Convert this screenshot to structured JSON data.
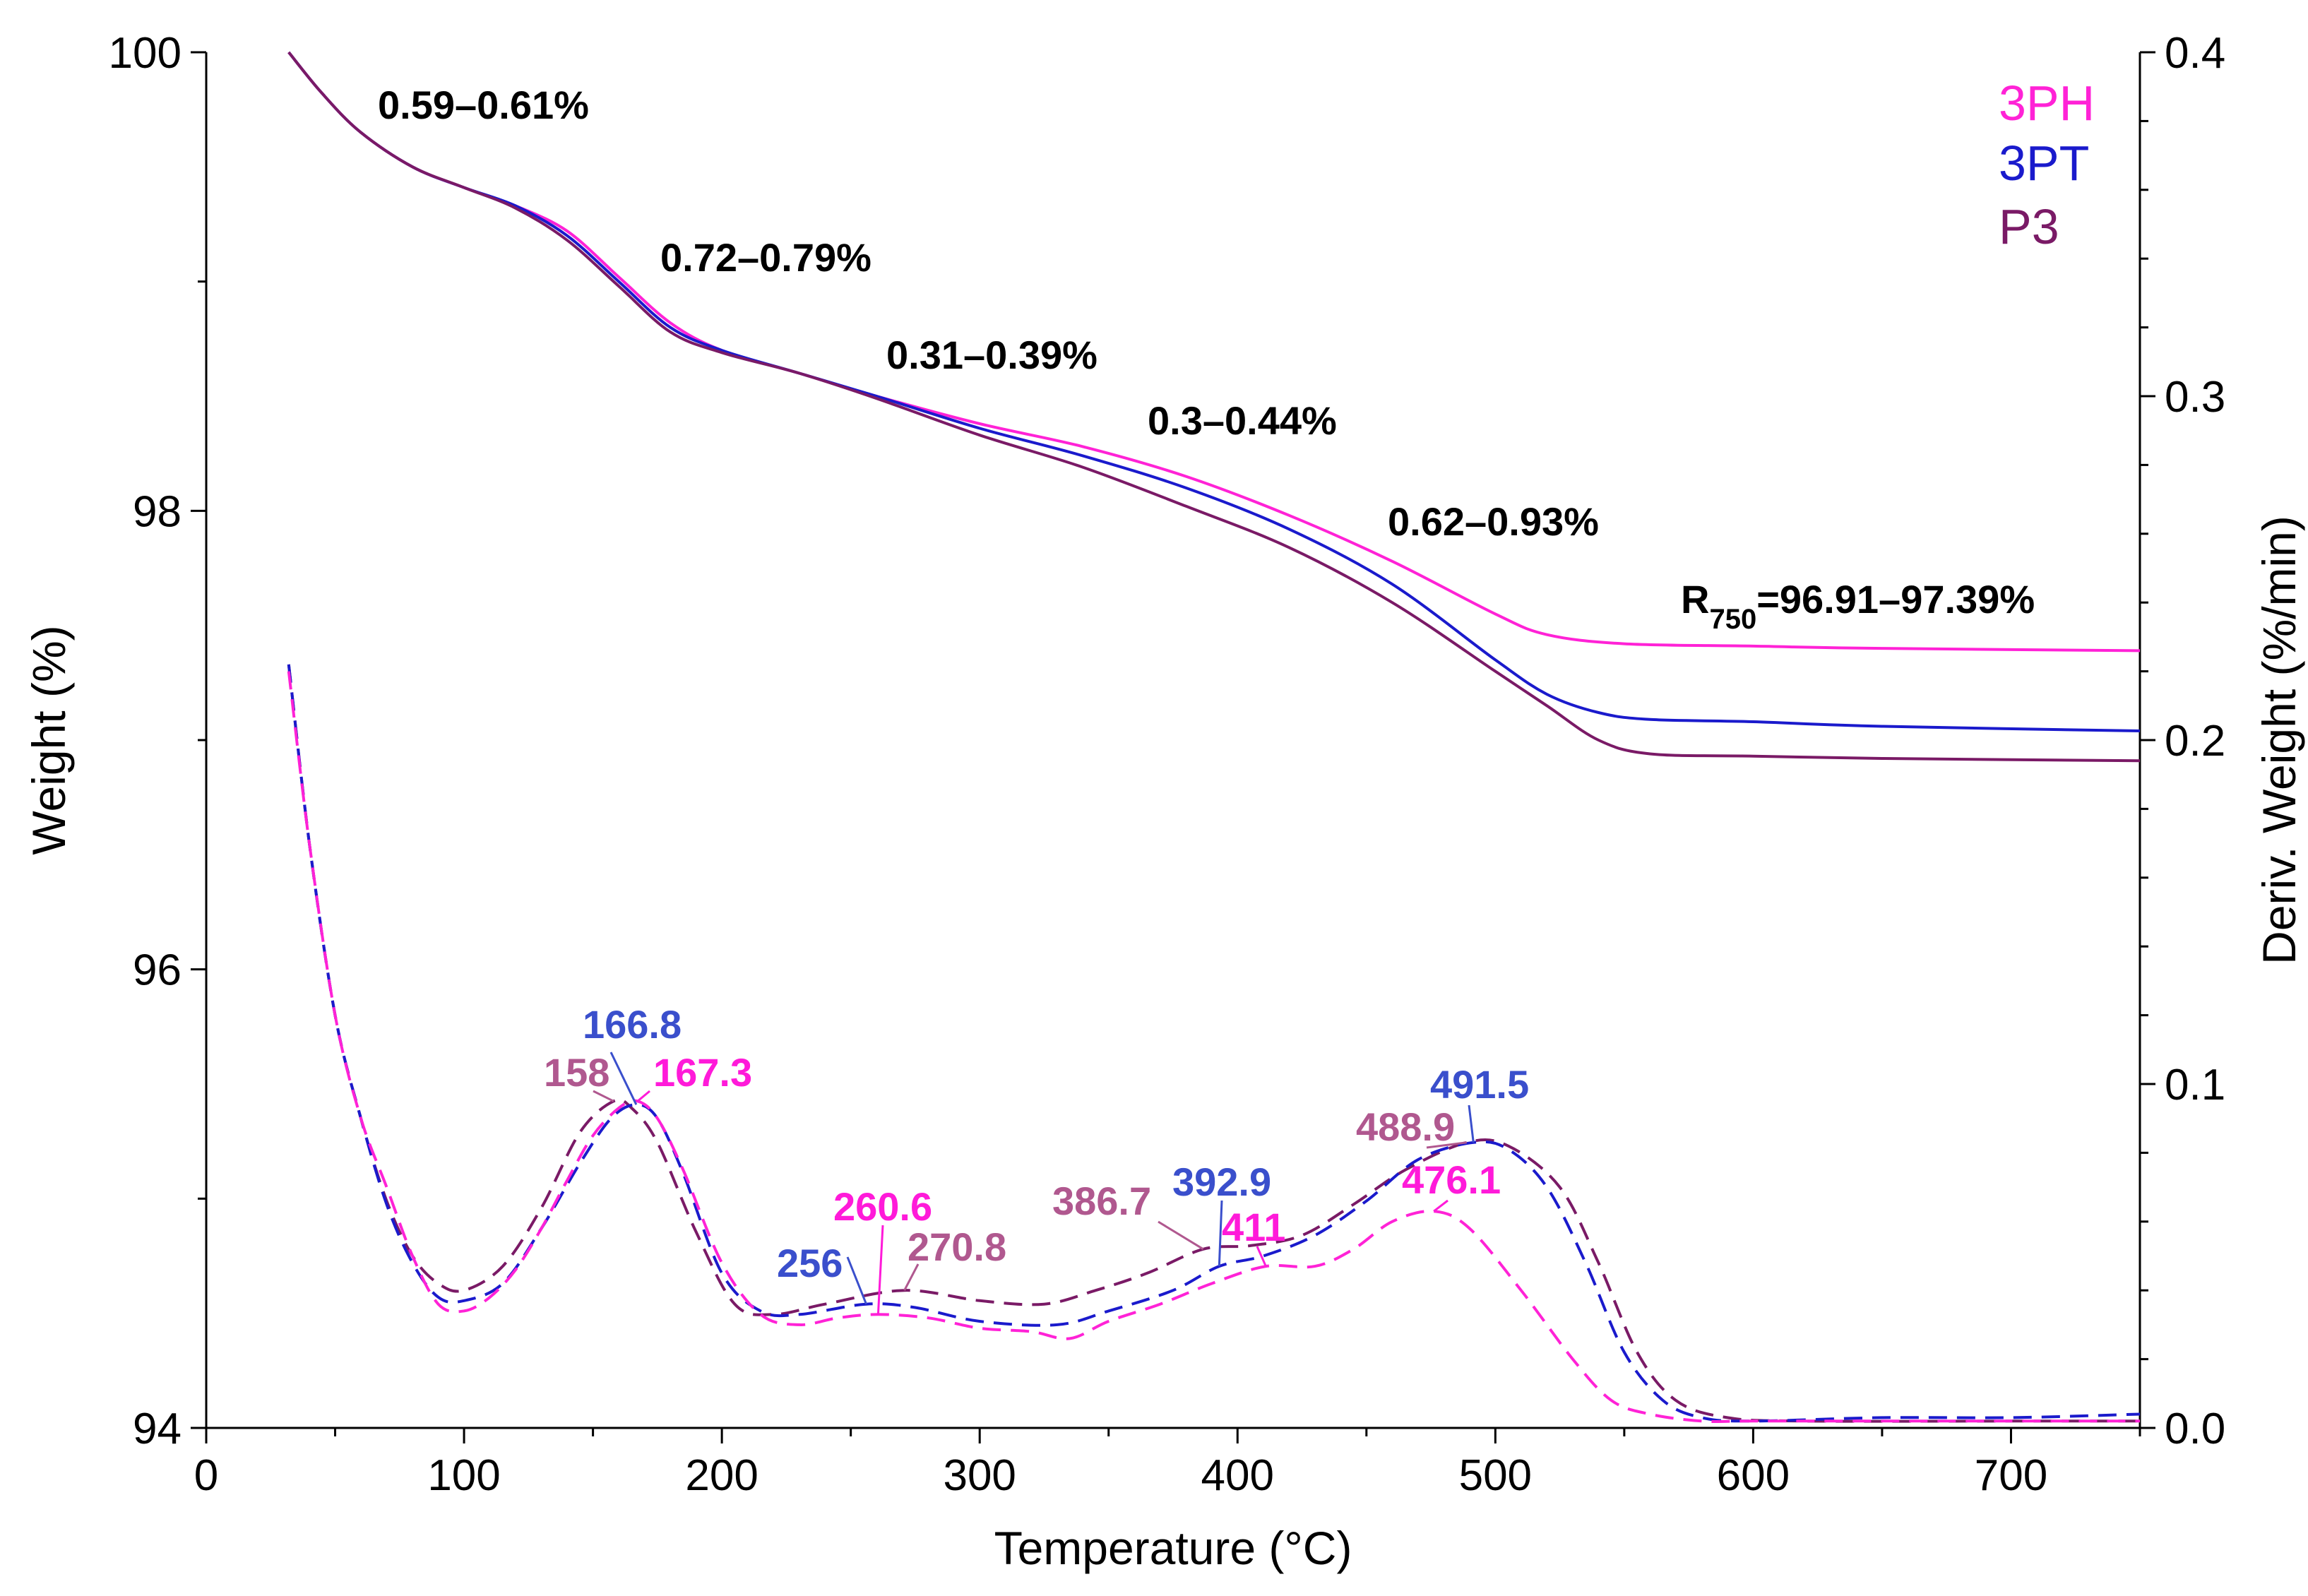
{
  "chart_data": {
    "type": "line",
    "xlabel": "Temperature (°C)",
    "ylabel": "Weight (%)",
    "y2label": "Deriv. Weight (%/min)",
    "xlim": [
      0,
      750
    ],
    "ylim": [
      94,
      100
    ],
    "y2lim": [
      0.0,
      0.4
    ],
    "x_ticks": [
      "0",
      "100",
      "200",
      "300",
      "400",
      "500",
      "600",
      "700"
    ],
    "y_ticks": [
      "94",
      "96",
      "98",
      "100"
    ],
    "y2_ticks": [
      "0.0",
      "0.1",
      "0.2",
      "0.3",
      "0.4"
    ],
    "legend": [
      {
        "name": "3PH",
        "color": "#ff22d6"
      },
      {
        "name": "3PT",
        "color": "#1a1acc"
      },
      {
        "name": "P3",
        "color": "#7a1a66"
      }
    ],
    "tga_series": [
      {
        "name": "3PH",
        "color": "#ff22d6",
        "points": [
          [
            32,
            100
          ],
          [
            45,
            99.82
          ],
          [
            60,
            99.65
          ],
          [
            80,
            99.5
          ],
          [
            100,
            99.41
          ],
          [
            120,
            99.33
          ],
          [
            140,
            99.22
          ],
          [
            160,
            99.02
          ],
          [
            180,
            98.82
          ],
          [
            200,
            98.7
          ],
          [
            230,
            98.6
          ],
          [
            260,
            98.5
          ],
          [
            300,
            98.38
          ],
          [
            340,
            98.28
          ],
          [
            380,
            98.15
          ],
          [
            420,
            97.98
          ],
          [
            460,
            97.78
          ],
          [
            500,
            97.55
          ],
          [
            520,
            97.46
          ],
          [
            550,
            97.42
          ],
          [
            600,
            97.41
          ],
          [
            650,
            97.4
          ],
          [
            750,
            97.39
          ]
        ]
      },
      {
        "name": "3PT",
        "color": "#1a1acc",
        "points": [
          [
            32,
            100
          ],
          [
            45,
            99.82
          ],
          [
            60,
            99.65
          ],
          [
            80,
            99.5
          ],
          [
            100,
            99.41
          ],
          [
            120,
            99.33
          ],
          [
            140,
            99.2
          ],
          [
            160,
            99.0
          ],
          [
            180,
            98.8
          ],
          [
            200,
            98.7
          ],
          [
            230,
            98.6
          ],
          [
            260,
            98.5
          ],
          [
            300,
            98.36
          ],
          [
            340,
            98.24
          ],
          [
            380,
            98.1
          ],
          [
            420,
            97.92
          ],
          [
            460,
            97.68
          ],
          [
            500,
            97.35
          ],
          [
            520,
            97.2
          ],
          [
            540,
            97.12
          ],
          [
            560,
            97.09
          ],
          [
            600,
            97.08
          ],
          [
            650,
            97.06
          ],
          [
            750,
            97.04
          ]
        ]
      },
      {
        "name": "P3",
        "color": "#7a1a66",
        "points": [
          [
            32,
            100
          ],
          [
            45,
            99.82
          ],
          [
            60,
            99.65
          ],
          [
            80,
            99.5
          ],
          [
            100,
            99.41
          ],
          [
            120,
            99.32
          ],
          [
            140,
            99.18
          ],
          [
            160,
            98.98
          ],
          [
            180,
            98.78
          ],
          [
            200,
            98.69
          ],
          [
            230,
            98.6
          ],
          [
            260,
            98.49
          ],
          [
            300,
            98.33
          ],
          [
            340,
            98.19
          ],
          [
            380,
            98.02
          ],
          [
            420,
            97.84
          ],
          [
            460,
            97.6
          ],
          [
            500,
            97.3
          ],
          [
            520,
            97.15
          ],
          [
            540,
            97.0
          ],
          [
            560,
            96.94
          ],
          [
            600,
            96.93
          ],
          [
            650,
            96.92
          ],
          [
            750,
            96.91
          ]
        ]
      }
    ],
    "dtg_series": [
      {
        "name": "3PH",
        "color": "#ff22d6",
        "points": [
          [
            32,
            0.22
          ],
          [
            40,
            0.17
          ],
          [
            50,
            0.12
          ],
          [
            60,
            0.09
          ],
          [
            70,
            0.07
          ],
          [
            80,
            0.05
          ],
          [
            90,
            0.036
          ],
          [
            100,
            0.034
          ],
          [
            110,
            0.038
          ],
          [
            120,
            0.046
          ],
          [
            130,
            0.058
          ],
          [
            140,
            0.072
          ],
          [
            150,
            0.085
          ],
          [
            160,
            0.093
          ],
          [
            167.3,
            0.095
          ],
          [
            175,
            0.09
          ],
          [
            185,
            0.075
          ],
          [
            200,
            0.048
          ],
          [
            215,
            0.033
          ],
          [
            230,
            0.03
          ],
          [
            245,
            0.032
          ],
          [
            260.6,
            0.033
          ],
          [
            280,
            0.032
          ],
          [
            300,
            0.029
          ],
          [
            320,
            0.028
          ],
          [
            335,
            0.026
          ],
          [
            350,
            0.031
          ],
          [
            370,
            0.036
          ],
          [
            390,
            0.042
          ],
          [
            411,
            0.047
          ],
          [
            430,
            0.047
          ],
          [
            445,
            0.052
          ],
          [
            460,
            0.06
          ],
          [
            476.1,
            0.063
          ],
          [
            490,
            0.058
          ],
          [
            510,
            0.04
          ],
          [
            530,
            0.02
          ],
          [
            545,
            0.008
          ],
          [
            560,
            0.004
          ],
          [
            580,
            0.002
          ],
          [
            600,
            0.002
          ],
          [
            650,
            0.002
          ],
          [
            750,
            0.002
          ]
        ]
      },
      {
        "name": "3PT",
        "color": "#1a1acc",
        "points": [
          [
            32,
            0.222
          ],
          [
            40,
            0.17
          ],
          [
            50,
            0.12
          ],
          [
            60,
            0.09
          ],
          [
            70,
            0.065
          ],
          [
            80,
            0.048
          ],
          [
            90,
            0.038
          ],
          [
            100,
            0.037
          ],
          [
            115,
            0.042
          ],
          [
            130,
            0.058
          ],
          [
            145,
            0.077
          ],
          [
            157,
            0.09
          ],
          [
            166.8,
            0.094
          ],
          [
            175,
            0.09
          ],
          [
            185,
            0.074
          ],
          [
            200,
            0.045
          ],
          [
            215,
            0.034
          ],
          [
            230,
            0.033
          ],
          [
            256,
            0.036
          ],
          [
            275,
            0.035
          ],
          [
            300,
            0.031
          ],
          [
            330,
            0.03
          ],
          [
            350,
            0.034
          ],
          [
            375,
            0.04
          ],
          [
            392.9,
            0.047
          ],
          [
            410,
            0.05
          ],
          [
            430,
            0.056
          ],
          [
            450,
            0.066
          ],
          [
            470,
            0.078
          ],
          [
            491.5,
            0.083
          ],
          [
            505,
            0.081
          ],
          [
            520,
            0.07
          ],
          [
            535,
            0.048
          ],
          [
            550,
            0.022
          ],
          [
            565,
            0.008
          ],
          [
            580,
            0.003
          ],
          [
            600,
            0.002
          ],
          [
            650,
            0.003
          ],
          [
            700,
            0.003
          ],
          [
            750,
            0.004
          ]
        ]
      },
      {
        "name": "P3",
        "color": "#7a1a66",
        "points": [
          [
            32,
            0.222
          ],
          [
            40,
            0.17
          ],
          [
            50,
            0.12
          ],
          [
            60,
            0.09
          ],
          [
            70,
            0.066
          ],
          [
            80,
            0.05
          ],
          [
            90,
            0.042
          ],
          [
            100,
            0.04
          ],
          [
            115,
            0.047
          ],
          [
            130,
            0.064
          ],
          [
            145,
            0.086
          ],
          [
            158,
            0.095
          ],
          [
            165,
            0.093
          ],
          [
            175,
            0.083
          ],
          [
            190,
            0.057
          ],
          [
            205,
            0.036
          ],
          [
            220,
            0.033
          ],
          [
            240,
            0.036
          ],
          [
            270.8,
            0.04
          ],
          [
            300,
            0.037
          ],
          [
            325,
            0.036
          ],
          [
            345,
            0.04
          ],
          [
            365,
            0.045
          ],
          [
            386.7,
            0.052
          ],
          [
            405,
            0.053
          ],
          [
            425,
            0.056
          ],
          [
            445,
            0.065
          ],
          [
            465,
            0.075
          ],
          [
            488.9,
            0.083
          ],
          [
            505,
            0.082
          ],
          [
            525,
            0.07
          ],
          [
            540,
            0.048
          ],
          [
            555,
            0.022
          ],
          [
            570,
            0.008
          ],
          [
            590,
            0.003
          ],
          [
            620,
            0.002
          ],
          [
            700,
            0.002
          ],
          [
            750,
            0.002
          ]
        ]
      }
    ],
    "mass_loss_annotations": [
      "0.59–0.61%",
      "0.72–0.79%",
      "0.31–0.39%",
      "0.3–0.44%",
      "0.62–0.93%"
    ],
    "residue_annotation": {
      "prefix": "R",
      "subscript": "750",
      "value": "=96.91–97.39%"
    },
    "peak_annotations": [
      {
        "text": "166.8",
        "series": "3PT",
        "x": 166.8
      },
      {
        "text": "158",
        "series": "P3",
        "x": 158
      },
      {
        "text": "167.3",
        "series": "3PH",
        "x": 167.3
      },
      {
        "text": "260.6",
        "series": "3PH",
        "x": 260.6
      },
      {
        "text": "256",
        "series": "3PT",
        "x": 256
      },
      {
        "text": "270.8",
        "series": "P3",
        "x": 270.8
      },
      {
        "text": "386.7",
        "series": "P3",
        "x": 386.7
      },
      {
        "text": "392.9",
        "series": "3PT",
        "x": 392.9
      },
      {
        "text": "411",
        "series": "3PH",
        "x": 411
      },
      {
        "text": "491.5",
        "series": "3PT",
        "x": 491.5
      },
      {
        "text": "488.9",
        "series": "P3",
        "x": 488.9
      },
      {
        "text": "476.1",
        "series": "3PH",
        "x": 476.1
      }
    ],
    "peak_label_colors": {
      "3PH": "#ff1ad9",
      "3PT": "#3a4fcc",
      "P3": "#b0588f"
    }
  }
}
